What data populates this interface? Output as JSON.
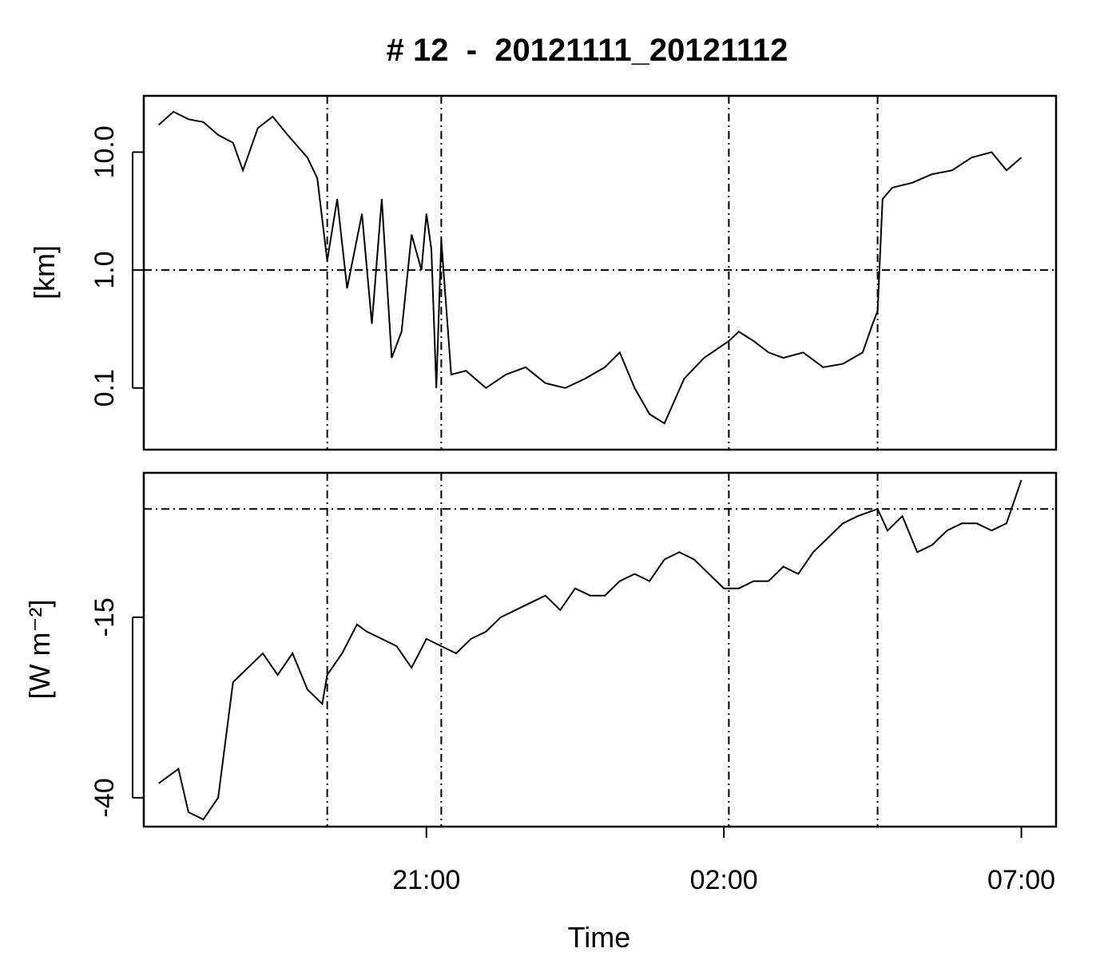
{
  "chart_data": {
    "title": "# 12  -  20121111_20121112",
    "xlabel": "Time",
    "x_ticks": [
      "21:00",
      "02:00",
      "07:00"
    ],
    "vlines": [
      "19:20",
      "21:15",
      "02:05",
      "04:35"
    ],
    "panels": [
      {
        "type": "line",
        "ylabel": "[km]",
        "yscale": "log",
        "y_ticks": [
          "0.1",
          "1.0",
          "10.0"
        ],
        "ylim": [
          0.03,
          30
        ],
        "hline": 1.0,
        "x": [
          "16:30",
          "16:45",
          "17:00",
          "17:15",
          "17:30",
          "17:45",
          "17:55",
          "18:10",
          "18:25",
          "18:40",
          "19:00",
          "19:10",
          "19:20",
          "19:30",
          "19:40",
          "19:55",
          "20:05",
          "20:15",
          "20:25",
          "20:35",
          "20:45",
          "20:55",
          "21:00",
          "21:05",
          "21:10",
          "21:15",
          "21:25",
          "21:40",
          "22:00",
          "22:20",
          "22:40",
          "23:00",
          "23:20",
          "23:40",
          "00:00",
          "00:15",
          "00:30",
          "00:45",
          "01:00",
          "01:20",
          "01:40",
          "02:05",
          "02:15",
          "02:30",
          "02:45",
          "03:00",
          "03:20",
          "03:40",
          "04:00",
          "04:20",
          "04:30",
          "04:35",
          "04:40",
          "04:50",
          "05:10",
          "05:30",
          "05:50",
          "06:10",
          "06:30",
          "06:45",
          "07:00"
        ],
        "y": [
          17,
          22,
          19,
          18,
          14,
          12,
          7,
          16,
          20,
          14,
          9,
          6,
          1.2,
          4,
          0.7,
          3,
          0.35,
          4,
          0.18,
          0.3,
          2,
          1,
          3,
          1.5,
          0.1,
          1.8,
          0.13,
          0.14,
          0.1,
          0.13,
          0.15,
          0.11,
          0.1,
          0.12,
          0.15,
          0.2,
          0.1,
          0.06,
          0.05,
          0.12,
          0.18,
          0.25,
          0.3,
          0.25,
          0.2,
          0.18,
          0.2,
          0.15,
          0.16,
          0.2,
          0.35,
          0.45,
          4,
          5,
          5.5,
          6.5,
          7,
          9,
          10,
          7,
          9
        ]
      },
      {
        "type": "line",
        "ylabel": "[W m⁻²]",
        "y_ticks": [
          "-40",
          "-15"
        ],
        "ylim": [
          -44,
          5
        ],
        "hline": 0,
        "x": [
          "16:30",
          "16:50",
          "17:00",
          "17:15",
          "17:30",
          "17:45",
          "18:00",
          "18:15",
          "18:30",
          "18:45",
          "19:00",
          "19:15",
          "19:20",
          "19:35",
          "19:50",
          "20:00",
          "20:15",
          "20:30",
          "20:45",
          "21:00",
          "21:15",
          "21:30",
          "21:45",
          "22:00",
          "22:15",
          "22:30",
          "22:45",
          "23:00",
          "23:15",
          "23:30",
          "23:45",
          "00:00",
          "00:15",
          "00:30",
          "00:45",
          "01:00",
          "01:15",
          "01:30",
          "01:45",
          "02:00",
          "02:15",
          "02:30",
          "02:45",
          "03:00",
          "03:15",
          "03:30",
          "03:45",
          "04:00",
          "04:15",
          "04:35",
          "04:45",
          "05:00",
          "05:15",
          "05:30",
          "05:45",
          "06:00",
          "06:15",
          "06:30",
          "06:45",
          "07:00"
        ],
        "y": [
          -38,
          -36,
          -42,
          -43,
          -40,
          -24,
          -22,
          -20,
          -23,
          -20,
          -25,
          -27,
          -23,
          -20,
          -16,
          -17,
          -18,
          -19,
          -22,
          -18,
          -19,
          -20,
          -18,
          -17,
          -15,
          -14,
          -13,
          -12,
          -14,
          -11,
          -12,
          -12,
          -10,
          -9,
          -10,
          -7,
          -6,
          -7,
          -9,
          -11,
          -11,
          -10,
          -10,
          -8,
          -9,
          -6,
          -4,
          -2,
          -1,
          0,
          -3,
          -1,
          -6,
          -5,
          -3,
          -2,
          -2,
          -3,
          -2,
          4
        ]
      }
    ]
  }
}
